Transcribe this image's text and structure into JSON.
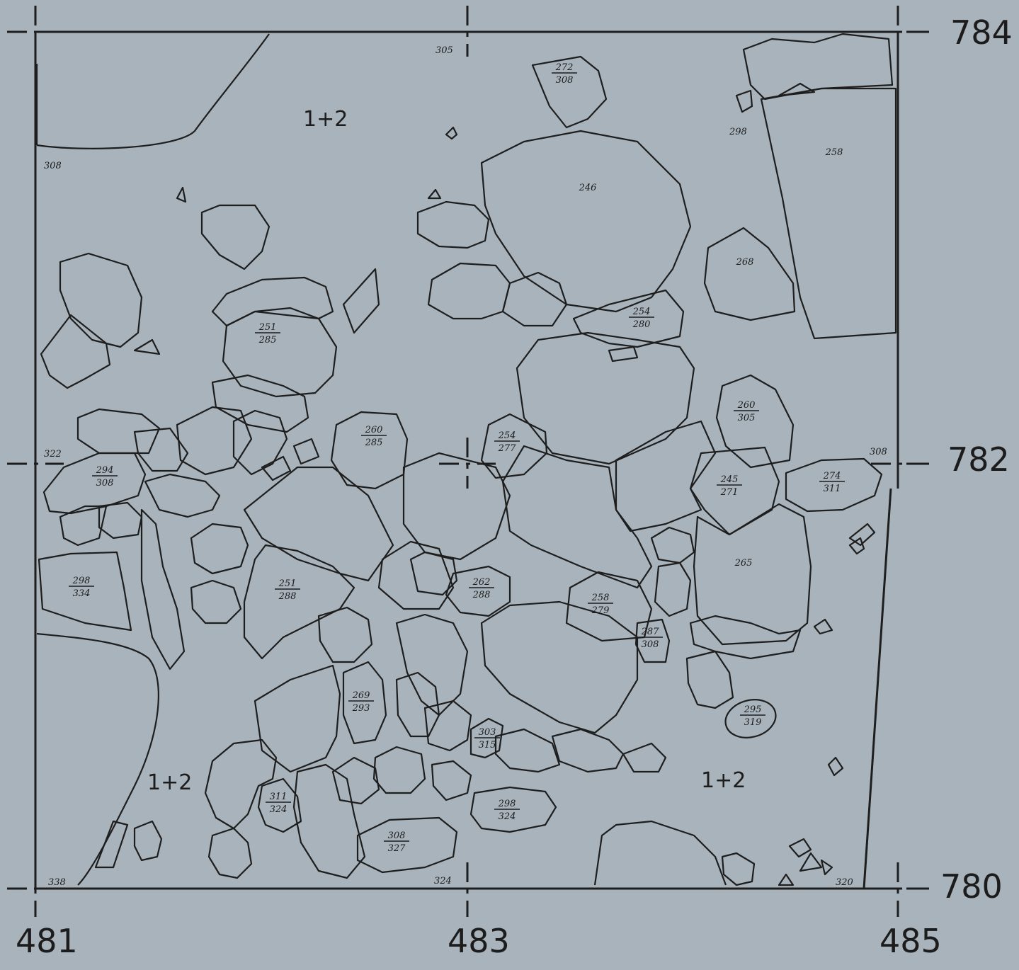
{
  "axes": {
    "x_labels": [
      "481",
      "483",
      "485"
    ],
    "y_labels": [
      "784",
      "782",
      "780"
    ]
  },
  "layers": {
    "top": "1+2",
    "bottom_left": "1+2",
    "bottom_right": "1+2"
  },
  "depths": {
    "corner_tr_top": "305",
    "left_top": "308",
    "left_mid": "322",
    "right_mid": "308",
    "bottom_left": "338",
    "bottom_mid": "324",
    "bottom_right": "320",
    "right_top": "298"
  },
  "stones": [
    {
      "top": "272",
      "bottom": "308"
    },
    {
      "top": "246",
      "bottom": ""
    },
    {
      "top": "258",
      "bottom": ""
    },
    {
      "top": "268",
      "bottom": ""
    },
    {
      "top": "254",
      "bottom": "280"
    },
    {
      "top": "251",
      "bottom": "285"
    },
    {
      "top": "260",
      "bottom": "305"
    },
    {
      "top": "260",
      "bottom": "285"
    },
    {
      "top": "254",
      "bottom": "277"
    },
    {
      "top": "294",
      "bottom": "308"
    },
    {
      "top": "245",
      "bottom": "271"
    },
    {
      "top": "274",
      "bottom": "311"
    },
    {
      "top": "265",
      "bottom": ""
    },
    {
      "top": "298",
      "bottom": "334"
    },
    {
      "top": "251",
      "bottom": "288"
    },
    {
      "top": "262",
      "bottom": "288"
    },
    {
      "top": "258",
      "bottom": "279"
    },
    {
      "top": "287",
      "bottom": "308"
    },
    {
      "top": "269",
      "bottom": "293"
    },
    {
      "top": "295",
      "bottom": "319"
    },
    {
      "top": "303",
      "bottom": "315"
    },
    {
      "top": "311",
      "bottom": "324"
    },
    {
      "top": "298",
      "bottom": "324"
    },
    {
      "top": "308",
      "bottom": "327"
    }
  ]
}
